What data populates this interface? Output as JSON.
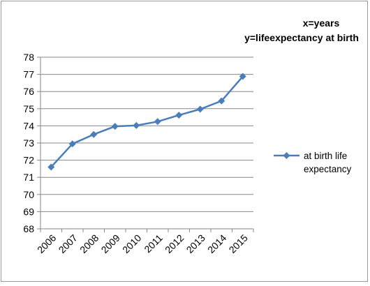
{
  "chart_data": {
    "type": "line",
    "title_lines": [
      "x=years",
      "y=lifeexpectancy at birth"
    ],
    "x": [
      "2006",
      "2007",
      "2008",
      "2009",
      "2010",
      "2011",
      "2012",
      "2013",
      "2014",
      "2015"
    ],
    "series": [
      {
        "name_lines": [
          "at birth life",
          "expectancy"
        ],
        "color": "#4a7ebb",
        "marker": "diamond",
        "values": [
          71.6,
          72.95,
          73.5,
          73.97,
          74.02,
          74.25,
          74.62,
          74.97,
          75.45,
          76.88
        ]
      }
    ],
    "ylim": [
      68,
      78
    ],
    "yticks": [
      "68",
      "69",
      "70",
      "71",
      "72",
      "73",
      "74",
      "75",
      "76",
      "77",
      "78"
    ],
    "grid": "horizontal",
    "legend_position": "right",
    "gridline_color": "#878787",
    "axis_color": "#878787",
    "text_color": "#000000"
  }
}
